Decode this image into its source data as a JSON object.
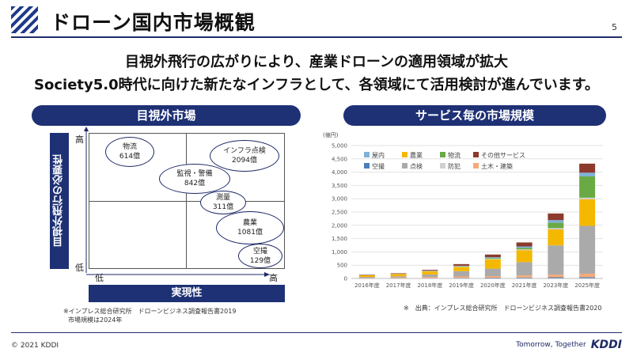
{
  "header": {
    "title": "ドローン国内市場概観",
    "page_number": "5"
  },
  "headline": {
    "line1": "目視外飛行の広がりにより、産業ドローンの適用領域が拡大",
    "line2": "Society5.0時代に向けた新たなインフラとして、各領域にて活用検討が進んでいます。"
  },
  "left_section": {
    "title": "目視外市場",
    "y_axis_label": "目視外飛行の必要性",
    "x_axis_label": "実現性",
    "y_high": "高",
    "y_low": "低",
    "x_low": "低",
    "x_high": "高",
    "bubbles": [
      {
        "name": "物流",
        "value": "614億"
      },
      {
        "name": "インフラ点検",
        "value": "2094億"
      },
      {
        "name": "監視・警備",
        "value": "842億"
      },
      {
        "name": "測量",
        "value": "311億"
      },
      {
        "name": "農業",
        "value": "1081億"
      },
      {
        "name": "空撮",
        "value": "129億"
      }
    ],
    "note_line1": "※インプレス総合研究所　ドローンビジネス調査報告書2019",
    "note_line2": "市場規模は2024年"
  },
  "right_section": {
    "title": "サービス毎の市場規模",
    "source": "※　出典：インプレス総合研究所　ドローンビジネス調査報告書2020"
  },
  "chart_data": {
    "type": "bar",
    "stacked": true,
    "ylabel": "(億円)",
    "ylim": [
      0,
      5000
    ],
    "yticks": [
      "0",
      "500",
      "1,000",
      "1,500",
      "2,000",
      "2,500",
      "3,000",
      "3,500",
      "4,000",
      "4,500",
      "5,000"
    ],
    "categories": [
      "2016年度",
      "2017年度",
      "2018年度",
      "2019年度",
      "2020年度",
      "2021年度",
      "2023年度",
      "2025年度"
    ],
    "series": [
      {
        "name": "空撮",
        "color": "#4a7ebb",
        "values": [
          10,
          15,
          20,
          25,
          30,
          35,
          45,
          50
        ]
      },
      {
        "name": "土木・建築",
        "color": "#f5a97a",
        "values": [
          20,
          30,
          40,
          50,
          60,
          80,
          100,
          130
        ]
      },
      {
        "name": "点検",
        "color": "#aaaaaa",
        "values": [
          30,
          40,
          90,
          200,
          280,
          500,
          1100,
          1800
        ]
      },
      {
        "name": "農業",
        "color": "#f5b800",
        "values": [
          60,
          80,
          120,
          160,
          350,
          450,
          600,
          1000
        ]
      },
      {
        "name": "防犯",
        "color": "#d0d0d0",
        "values": [
          5,
          5,
          10,
          15,
          20,
          30,
          50,
          60
        ]
      },
      {
        "name": "物流",
        "color": "#6aaa44",
        "values": [
          0,
          0,
          5,
          10,
          30,
          60,
          200,
          800
        ]
      },
      {
        "name": "屋内",
        "color": "#7fb1d9",
        "values": [
          5,
          5,
          10,
          20,
          30,
          50,
          100,
          140
        ]
      },
      {
        "name": "その他サービス",
        "color": "#8b3a2b",
        "values": [
          15,
          20,
          30,
          60,
          100,
          150,
          250,
          340
        ]
      }
    ],
    "legend": [
      "屋内",
      "農業",
      "物流",
      "その他サービス",
      "空撮",
      "点検",
      "防犯",
      "土木・建築"
    ]
  },
  "footer": {
    "copyright": "© 2021 KDDI",
    "tagline": "Tomorrow, Together",
    "logo": "KDDI"
  }
}
